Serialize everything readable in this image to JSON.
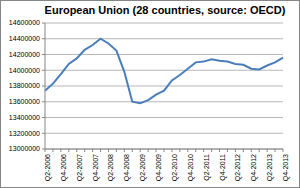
{
  "chart_data": {
    "type": "line",
    "title": "European Union (28 countries, source: OECD)",
    "categories": [
      "Q2-2006",
      null,
      "Q4-2006",
      null,
      "Q2-2007",
      null,
      "Q4-2007",
      null,
      "Q2-2008",
      null,
      "Q4-2008",
      null,
      "Q2-2009",
      null,
      "Q4-2009",
      null,
      "Q2-2010",
      null,
      "Q4-2010",
      null,
      "Q2-2011",
      null,
      "Q4-2011",
      null,
      "Q2-2012",
      null,
      "Q4-2012",
      null,
      "Q2-2013",
      null,
      "Q4-2013"
    ],
    "values": [
      13740000,
      13830000,
      13950000,
      14080000,
      14150000,
      14260000,
      14320000,
      14400000,
      14340000,
      14250000,
      13980000,
      13600000,
      13580000,
      13620000,
      13690000,
      13740000,
      13870000,
      13940000,
      14020000,
      14100000,
      14110000,
      14140000,
      14120000,
      14110000,
      14080000,
      14070000,
      14020000,
      14010000,
      14060000,
      14100000,
      14160000
    ],
    "color": "#4a7ebb",
    "ylim": [
      13000000,
      14600000
    ],
    "yticks": [
      13000000,
      13200000,
      13400000,
      13600000,
      13800000,
      14000000,
      14200000,
      14400000,
      14600000
    ],
    "grid": true
  }
}
